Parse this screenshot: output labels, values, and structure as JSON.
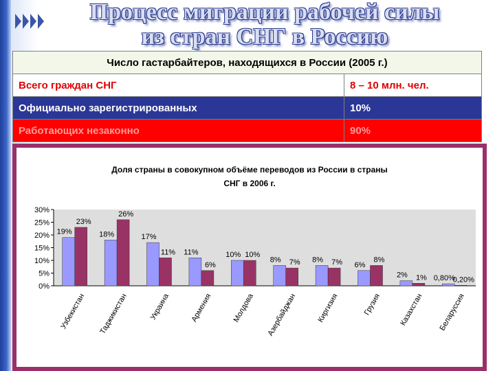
{
  "title": {
    "line1": "Процесс миграции рабочей силы",
    "line2": "из стран СНГ в Россию"
  },
  "table": {
    "header": "Число гастарбайтеров, находящихся в России (2005 г.)",
    "rows": [
      {
        "label": "Всего граждан СНГ",
        "value": "8 – 10 млн. чел."
      },
      {
        "label": "Официально зарегистрированных",
        "value": "10%"
      },
      {
        "label": "Работающих незаконно",
        "value": "90%"
      }
    ]
  },
  "colors": {
    "series1": "#9999ff",
    "series2": "#993366",
    "frame": "#9b2f6a"
  },
  "chart_data": {
    "type": "bar",
    "title_line1": "Доля страны в совокупном объёме переводов из России в страны",
    "title_line2": "СНГ в 2006 г.",
    "categories": [
      "Узбекистан",
      "Таджикистан",
      "Украина",
      "Армения",
      "Молдова",
      "Азербайджан",
      "Киргизия",
      "Грузия",
      "Казахстан",
      "Беларуссия"
    ],
    "series": [
      {
        "values": [
          19,
          18,
          17,
          11,
          10,
          8,
          8,
          6,
          2,
          0.8
        ],
        "labels": [
          "19%",
          "18%",
          "17%",
          "11%",
          "10%",
          "8%",
          "8%",
          "6%",
          "2%",
          "0,80%"
        ]
      },
      {
        "values": [
          23,
          26,
          11,
          6,
          10,
          7,
          7,
          8,
          1,
          0.2
        ],
        "labels": [
          "23%",
          "26%",
          "11%",
          "6%",
          "10%",
          "7%",
          "7%",
          "8%",
          "1%",
          "0,20%"
        ]
      }
    ],
    "yticks": [
      "0%",
      "5%",
      "10%",
      "15%",
      "20%",
      "25%",
      "30%"
    ],
    "ylim": [
      0,
      30
    ],
    "grid": false,
    "legend": "none"
  }
}
